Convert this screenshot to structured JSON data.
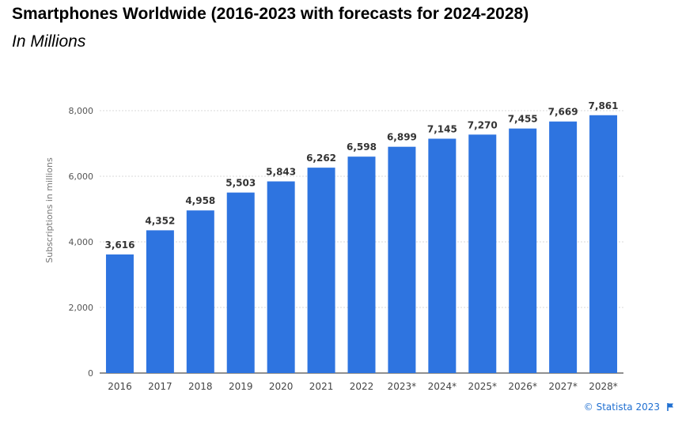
{
  "header": {
    "title": "Smartphones Worldwide (2016-2023 with forecasts for 2024-2028)",
    "subtitle": "In Millions"
  },
  "credit": {
    "text": "© Statista 2023"
  },
  "colors": {
    "bar": "#2e74e0",
    "grid": "#d9d9d9",
    "axis_text": "#555555",
    "label": "#333333",
    "credit": "#1f6fd1"
  },
  "chart_data": {
    "type": "bar",
    "categories": [
      "2016",
      "2017",
      "2018",
      "2019",
      "2020",
      "2021",
      "2022",
      "2023*",
      "2024*",
      "2025*",
      "2026*",
      "2027*",
      "2028*"
    ],
    "values": [
      3616,
      4352,
      4958,
      5503,
      5843,
      6262,
      6598,
      6899,
      7145,
      7270,
      7455,
      7669,
      7861
    ],
    "data_labels": [
      "3,616",
      "4,352",
      "4,958",
      "5,503",
      "5,843",
      "6,262",
      "6,598",
      "6,899",
      "7,145",
      "7,270",
      "7,455",
      "7,669",
      "7,861"
    ],
    "yticks": [
      0,
      2000,
      4000,
      6000,
      8000
    ],
    "ytick_labels": [
      "0",
      "2,000",
      "4,000",
      "6,000",
      "8,000"
    ],
    "ylabel": "Subscriptions in millions",
    "xlabel": "",
    "ylim": [
      0,
      8000
    ],
    "grid": true
  }
}
